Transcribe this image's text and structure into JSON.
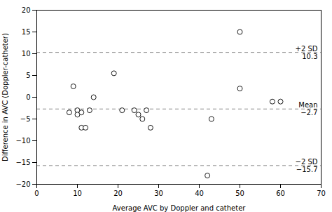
{
  "chart_data": {
    "type": "scatter",
    "x": [
      8,
      9,
      10,
      10,
      11,
      11,
      12,
      13,
      14,
      19,
      21,
      24,
      25,
      26,
      27,
      28,
      42,
      43,
      50,
      50,
      58,
      60
    ],
    "values": [
      -3.5,
      2.5,
      -3,
      -4,
      -3.5,
      -7,
      -7,
      -3,
      0,
      5.5,
      -3,
      -3,
      -4,
      -5,
      -3,
      -7,
      -18,
      -5,
      15,
      2,
      -1,
      -1
    ],
    "color": "black",
    "marker": "open",
    "xlabel": "Average AVC by Doppler and catheter",
    "ylabel": "Difference in AVC (Doppler-catheter)",
    "xlim": [
      0,
      70
    ],
    "ylim": [
      -20,
      20
    ],
    "xticks": [
      0,
      10,
      20,
      30,
      40,
      50,
      60,
      70
    ],
    "yticks": [
      -20,
      -15,
      -10,
      -5,
      0,
      5,
      10,
      15,
      20
    ],
    "grid": false,
    "reference_lines": [
      {
        "value": 10.3,
        "label": "+2 SD",
        "value_label": "10.3",
        "color": "#888888",
        "line_style": "dashed"
      },
      {
        "value": -2.7,
        "label": "Mean",
        "value_label": "−2.7",
        "color": "#888888",
        "line_style": "dashed"
      },
      {
        "value": -15.7,
        "label": "−2 SD",
        "value_label": "−15.7",
        "color": "#888888",
        "line_style": "dashed"
      }
    ]
  }
}
